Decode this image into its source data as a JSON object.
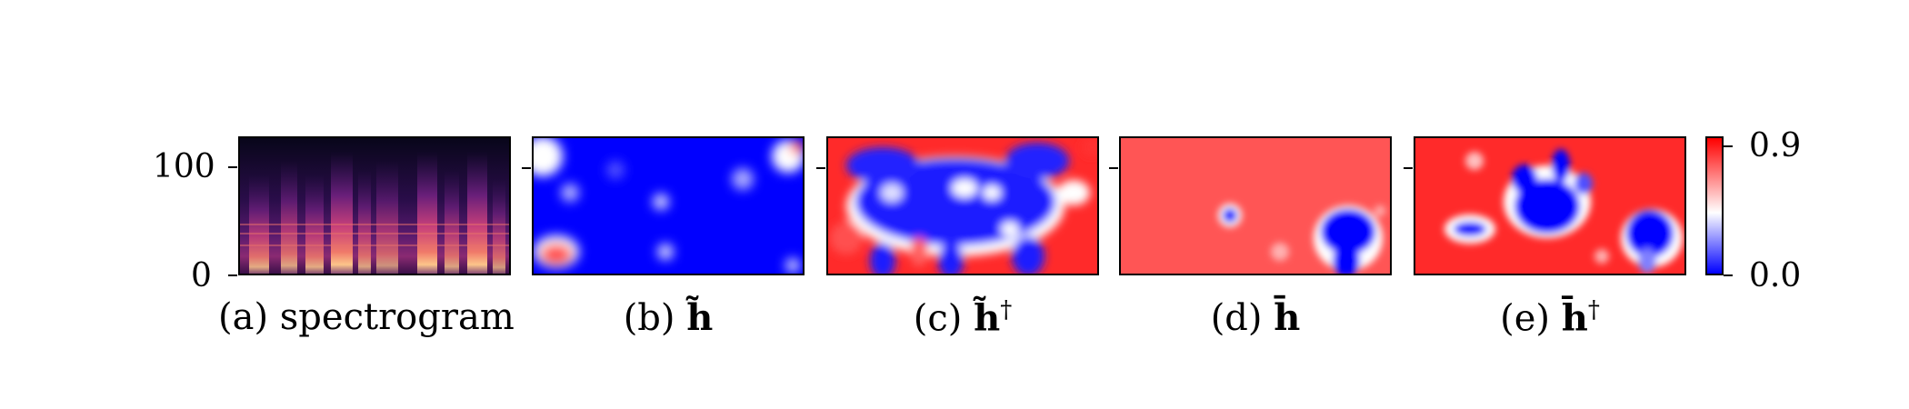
{
  "colors": {
    "hot": "#ff2a2a",
    "cold": "#0000ff",
    "neutral": "#ffffff"
  },
  "chart_data": {
    "type": "heatmap",
    "panels": [
      {
        "id": "a",
        "caption_prefix": "(a) ",
        "caption_text": "spectrogram",
        "caption_sup": "",
        "colormap": "magma"
      },
      {
        "id": "b",
        "caption_prefix": "(b) ",
        "caption_text": "h̃",
        "caption_sup": "",
        "colormap": "bwr"
      },
      {
        "id": "c",
        "caption_prefix": "(c) ",
        "caption_text": "h̃",
        "caption_sup": "†",
        "colormap": "bwr"
      },
      {
        "id": "d",
        "caption_prefix": "(d) ",
        "caption_text": "h̄",
        "caption_sup": "",
        "colormap": "bwr"
      },
      {
        "id": "e",
        "caption_prefix": "(e) ",
        "caption_text": "h̄",
        "caption_sup": "†",
        "colormap": "bwr"
      }
    ],
    "y_axis": {
      "ticks": [
        "0",
        "100"
      ],
      "range": [
        0,
        125
      ]
    },
    "colorbar": {
      "min_label": "0.0",
      "max_label": "0.9",
      "range": [
        0.0,
        0.9
      ]
    }
  }
}
